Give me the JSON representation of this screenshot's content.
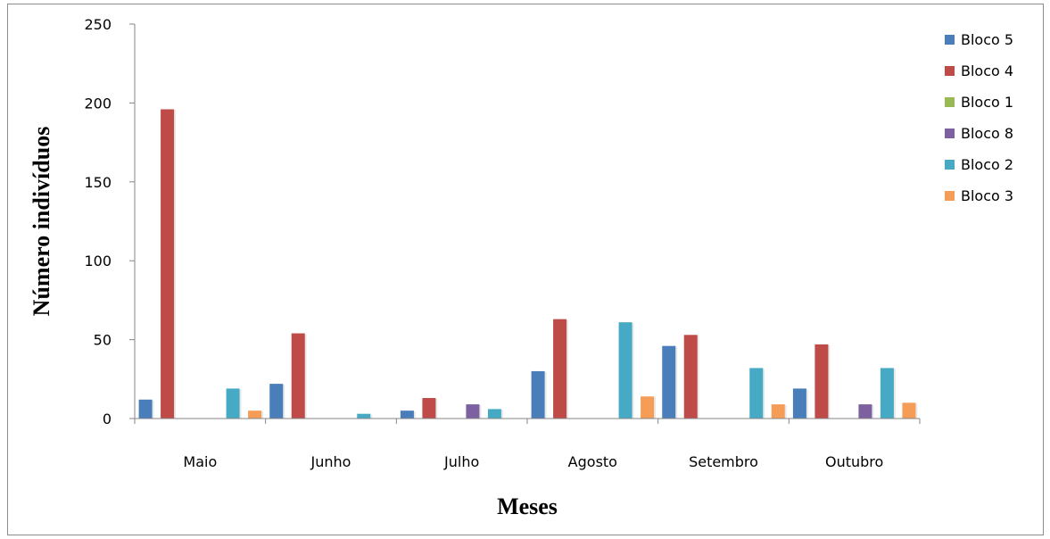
{
  "chart_data": {
    "type": "bar",
    "title": "",
    "xlabel": "Meses",
    "ylabel": "Número indivíduos",
    "ylim": [
      0,
      250
    ],
    "yticks": [
      0,
      50,
      100,
      150,
      200,
      250
    ],
    "grid": false,
    "legend_position": "right",
    "categories": [
      "Maio",
      "Junho",
      "Julho",
      "Agosto",
      "Setembro",
      "Outubro"
    ],
    "series": [
      {
        "name": "Bloco 5",
        "color": "#4a7ebb",
        "values": [
          12,
          22,
          5,
          30,
          46,
          19
        ]
      },
      {
        "name": "Bloco 4",
        "color": "#be4b48",
        "values": [
          196,
          54,
          13,
          63,
          53,
          47
        ]
      },
      {
        "name": "Bloco 1",
        "color": "#98b954",
        "values": [
          0,
          0,
          0,
          0,
          0,
          0
        ]
      },
      {
        "name": "Bloco 8",
        "color": "#7d60a0",
        "values": [
          0,
          0,
          9,
          0,
          0,
          9
        ]
      },
      {
        "name": "Bloco 2",
        "color": "#46aac5",
        "values": [
          19,
          3,
          6,
          61,
          32,
          32
        ]
      },
      {
        "name": "Bloco 3",
        "color": "#f59d56",
        "values": [
          5,
          0,
          0,
          14,
          9,
          10
        ]
      }
    ]
  }
}
